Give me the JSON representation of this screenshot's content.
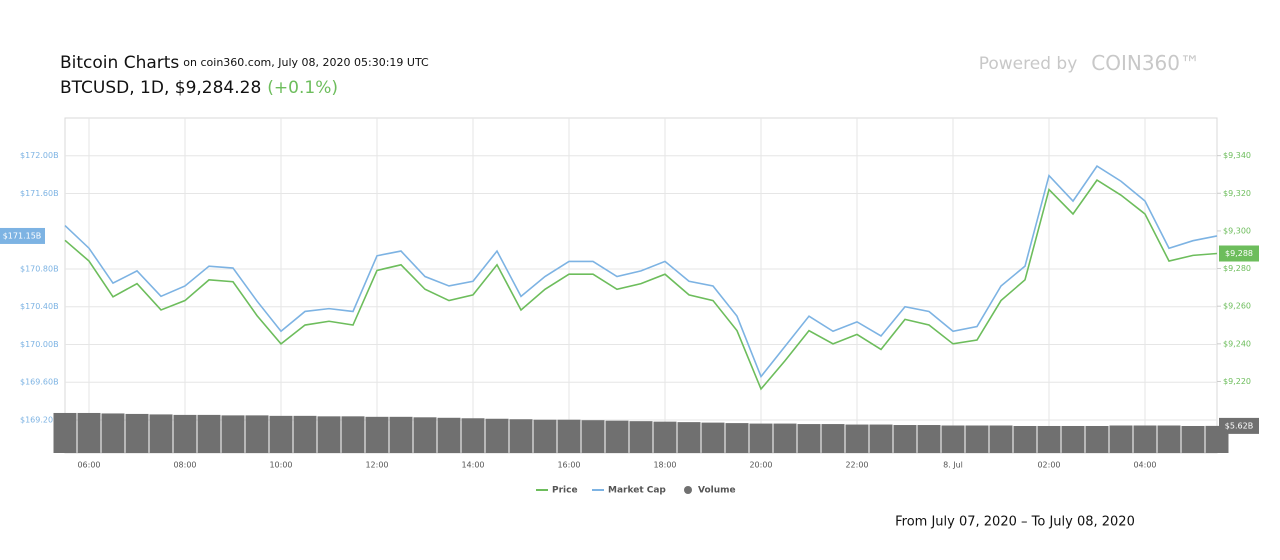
{
  "chart_data": {
    "type": "line",
    "title": "Bitcoin Charts",
    "subtitle": "on coin360.com, July 08, 2020 05:30:19 UTC",
    "ticker": "BTCUSD, 1D, $9,284.28",
    "change": "(+0.1%)",
    "brand_prefix": "Powered by",
    "brand": "COIN360™",
    "footer": "From July 07, 2020 – To July 08, 2020",
    "categories": [
      null,
      "06:00",
      null,
      null,
      null,
      "08:00",
      null,
      null,
      null,
      "10:00",
      null,
      null,
      null,
      "12:00",
      null,
      null,
      null,
      "14:00",
      null,
      null,
      null,
      "16:00",
      null,
      null,
      null,
      "18:00",
      null,
      null,
      null,
      "20:00",
      null,
      null,
      null,
      "22:00",
      null,
      null,
      null,
      "8. Jul",
      null,
      null,
      null,
      "02:00",
      null,
      null,
      null,
      "04:00",
      null,
      null,
      null
    ],
    "series": [
      {
        "name": "Price",
        "color": "#6dbd5c",
        "axis": "y2",
        "values": [
          9295,
          9284,
          9265,
          9272,
          9258,
          9263,
          9274,
          9273,
          9255,
          9240,
          9250,
          9252,
          9250,
          9279,
          9282,
          9269,
          9263,
          9266,
          9282,
          9258,
          9269,
          9277,
          9277,
          9269,
          9272,
          9277,
          9266,
          9263,
          9247,
          9216,
          9231,
          9247,
          9240,
          9245,
          9237,
          9253,
          9250,
          9240,
          9242,
          9263,
          9274,
          9322,
          9309,
          9327,
          9319,
          9309,
          9284,
          9287,
          9288
        ],
        "value_labels": [
          null,
          null,
          null,
          null,
          null,
          null,
          null,
          null,
          null,
          null,
          null,
          null,
          null,
          null,
          null,
          null,
          null,
          null,
          null,
          null,
          null,
          null,
          null,
          null,
          null,
          null,
          null,
          null,
          null,
          null,
          null,
          null,
          null,
          null,
          null,
          null,
          null,
          null,
          null,
          null,
          null,
          null,
          null,
          null,
          null,
          null,
          null,
          null,
          "$9,288"
        ]
      },
      {
        "name": "Market Cap",
        "color": "#7db3e3",
        "axis": "y",
        "values": [
          171.26,
          171.02,
          170.65,
          170.78,
          170.51,
          170.62,
          170.83,
          170.81,
          170.46,
          170.14,
          170.35,
          170.38,
          170.35,
          170.94,
          170.99,
          170.72,
          170.62,
          170.67,
          170.99,
          170.51,
          170.72,
          170.88,
          170.88,
          170.72,
          170.78,
          170.88,
          170.67,
          170.62,
          170.3,
          169.66,
          169.98,
          170.3,
          170.14,
          170.24,
          170.09,
          170.4,
          170.35,
          170.14,
          170.19,
          170.62,
          170.83,
          171.79,
          171.52,
          171.89,
          171.73,
          171.52,
          171.02,
          171.1,
          171.15
        ],
        "value_labels": [
          null,
          null,
          null,
          null,
          null,
          null,
          null,
          null,
          null,
          null,
          null,
          null,
          null,
          null,
          null,
          null,
          null,
          null,
          null,
          null,
          null,
          null,
          null,
          null,
          null,
          null,
          null,
          null,
          null,
          null,
          null,
          null,
          null,
          null,
          null,
          null,
          null,
          null,
          null,
          null,
          null,
          null,
          null,
          null,
          null,
          null,
          null,
          null,
          "$171.15B"
        ]
      },
      {
        "name": "Volume",
        "color": "#707070",
        "axis": "y3",
        "values": [
          8.3,
          8.3,
          8.2,
          8.1,
          8.0,
          7.9,
          7.9,
          7.8,
          7.8,
          7.7,
          7.7,
          7.6,
          7.6,
          7.5,
          7.5,
          7.4,
          7.3,
          7.2,
          7.1,
          7.0,
          6.9,
          6.9,
          6.8,
          6.7,
          6.6,
          6.5,
          6.4,
          6.3,
          6.2,
          6.1,
          6.1,
          6.0,
          6.0,
          5.9,
          5.9,
          5.8,
          5.8,
          5.7,
          5.7,
          5.7,
          5.6,
          5.6,
          5.6,
          5.6,
          5.7,
          5.7,
          5.7,
          5.6,
          5.62
        ],
        "value_labels": [
          null,
          null,
          null,
          null,
          null,
          null,
          null,
          null,
          null,
          null,
          null,
          null,
          null,
          null,
          null,
          null,
          null,
          null,
          null,
          null,
          null,
          null,
          null,
          null,
          null,
          null,
          null,
          null,
          null,
          null,
          null,
          null,
          null,
          null,
          null,
          null,
          null,
          null,
          null,
          null,
          null,
          null,
          null,
          null,
          null,
          null,
          null,
          null,
          "$5.62B"
        ]
      }
    ],
    "ylim": [
      168.85,
      172.4
    ],
    "yticks": [
      {
        "value": 169.2,
        "label": "$169.20B"
      },
      {
        "value": 169.6,
        "label": "$169.60B"
      },
      {
        "value": 170.0,
        "label": "$170.00B"
      },
      {
        "value": 170.4,
        "label": "$170.40B"
      },
      {
        "value": 170.8,
        "label": "$170.80B"
      },
      {
        "value": 171.6,
        "label": "$171.60B"
      },
      {
        "value": 172.0,
        "label": "$172.00B"
      }
    ],
    "y2lim": [
      9182,
      9360
    ],
    "y2ticks": [
      {
        "value": 9220,
        "label": "$9,220"
      },
      {
        "value": 9240,
        "label": "$9,240"
      },
      {
        "value": 9260,
        "label": "$9,260"
      },
      {
        "value": 9280,
        "label": "$9,280"
      },
      {
        "value": 9300,
        "label": "$9,300"
      },
      {
        "value": 9320,
        "label": "$9,320"
      },
      {
        "value": 9340,
        "label": "$9,340"
      }
    ],
    "y3lim": [
      0,
      8.5
    ],
    "grid": true
  }
}
